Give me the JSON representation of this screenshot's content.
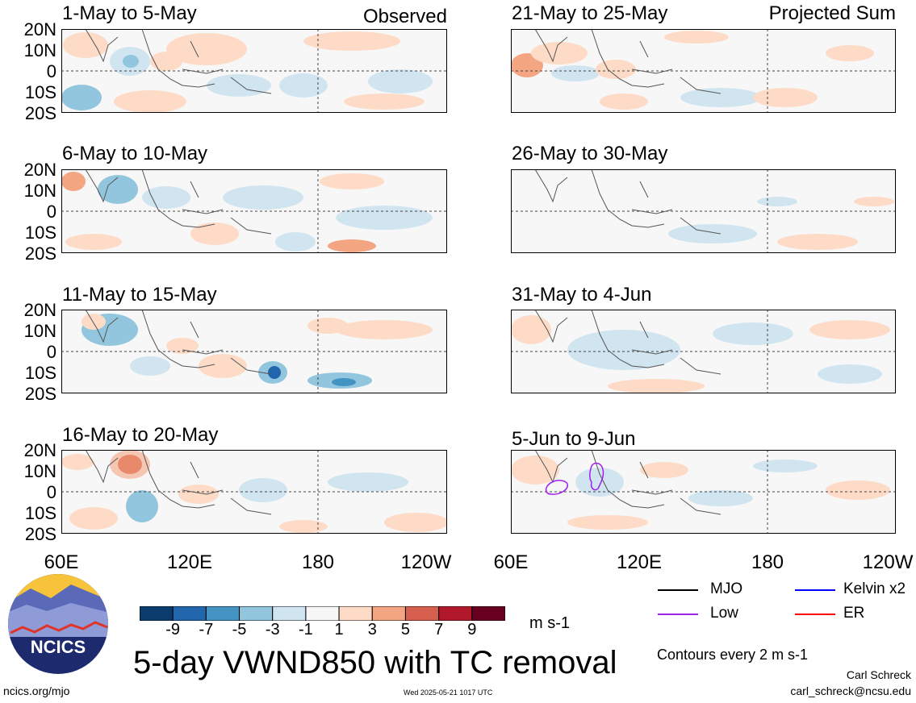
{
  "panels": [
    {
      "title": "1-May to 5-May",
      "tag": "Observed",
      "column": "left",
      "row": 0
    },
    {
      "title": "6-May to 10-May",
      "tag": "",
      "column": "left",
      "row": 1
    },
    {
      "title": "11-May to 15-May",
      "tag": "",
      "column": "left",
      "row": 2
    },
    {
      "title": "16-May to 20-May",
      "tag": "",
      "column": "left",
      "row": 3
    },
    {
      "title": "21-May to 25-May",
      "tag": "Projected Sum",
      "column": "right",
      "row": 0
    },
    {
      "title": "26-May to 30-May",
      "tag": "",
      "column": "right",
      "row": 1
    },
    {
      "title": "31-May to 4-Jun",
      "tag": "",
      "column": "right",
      "row": 2
    },
    {
      "title": "5-Jun to 9-Jun",
      "tag": "",
      "column": "right",
      "row": 3
    }
  ],
  "lat_labels": [
    "20N",
    "10N",
    "0",
    "10S",
    "20S"
  ],
  "lon_labels": [
    "60E",
    "120E",
    "180",
    "120W"
  ],
  "colorbar": {
    "colors": [
      "#0a3c6e",
      "#2166ac",
      "#4393c3",
      "#92c5de",
      "#d1e5f0",
      "#f7f7f7",
      "#fddbc7",
      "#f4a582",
      "#d6604d",
      "#b2182b",
      "#67001f"
    ],
    "labels": [
      "-9",
      "-7",
      "-5",
      "-3",
      "-1",
      "1",
      "3",
      "5",
      "7",
      "9"
    ],
    "units": "m s-1"
  },
  "main_title": "5-day VWND850 with TC removal",
  "legend": [
    {
      "label": "MJO",
      "color": "#000000"
    },
    {
      "label": "Kelvin x2",
      "color": "#0000ff"
    },
    {
      "label": "Low",
      "color": "#a020f0"
    },
    {
      "label": "ER",
      "color": "#ff0000"
    }
  ],
  "contour_note": "Contours every 2 m s-1",
  "footer": {
    "left": "ncics.org/mjo",
    "center": "Wed 2025-05-21 1017 UTC",
    "author": "Carl Schreck",
    "email": "carl_schreck@ncsu.edu"
  },
  "logo_text": "NCICS",
  "chart_data": {
    "type": "heatmap",
    "title": "5-day VWND850 with TC removal",
    "variable": "850-hPa meridional wind anomaly (TC removed)",
    "units": "m s-1",
    "x_ticks": [
      "60E",
      "120E",
      "180",
      "120W"
    ],
    "y_ticks": [
      "20N",
      "10N",
      "0",
      "10S",
      "20S"
    ],
    "xlim": [
      "60E",
      "120W"
    ],
    "ylim": [
      "20S",
      "20N"
    ],
    "contour_levels": [
      -9,
      -7,
      -5,
      -3,
      -1,
      1,
      3,
      5,
      7,
      9
    ],
    "panels": [
      {
        "period": "1-May to 5-May",
        "kind": "Observed"
      },
      {
        "period": "6-May to 10-May",
        "kind": "Observed"
      },
      {
        "period": "11-May to 15-May",
        "kind": "Observed"
      },
      {
        "period": "16-May to 20-May",
        "kind": "Observed"
      },
      {
        "period": "21-May to 25-May",
        "kind": "Projected Sum"
      },
      {
        "period": "26-May to 30-May",
        "kind": "Projected Sum"
      },
      {
        "period": "31-May to 4-Jun",
        "kind": "Projected Sum"
      },
      {
        "period": "5-Jun to 9-Jun",
        "kind": "Projected Sum"
      }
    ]
  }
}
